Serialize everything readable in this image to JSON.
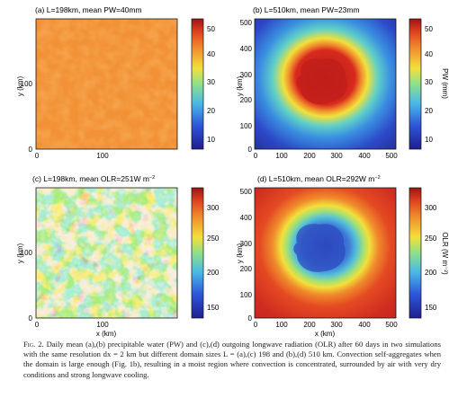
{
  "figure": {
    "panels": [
      {
        "title": "(a) L=198km,  mean PW=40mm",
        "xlabel": "",
        "ylabel": "y (km)",
        "xticks": [
          "0",
          "100"
        ],
        "yticks": [
          "0",
          "100"
        ],
        "colorbar": {
          "ticks": [
            "10",
            "20",
            "30",
            "40",
            "50"
          ],
          "label": ""
        }
      },
      {
        "title": "(b) L=510km,  mean PW=23mm",
        "xlabel": "",
        "ylabel": "y (km)",
        "xticks": [
          "0",
          "100",
          "200",
          "300",
          "400",
          "500"
        ],
        "yticks": [
          "0",
          "100",
          "200",
          "300",
          "400",
          "500"
        ],
        "colorbar": {
          "ticks": [
            "10",
            "20",
            "30",
            "40",
            "50"
          ],
          "label": "PW (mm)"
        }
      },
      {
        "title_main": "(c) L=198km,  mean OLR=251W m",
        "title_sup": "−2",
        "xlabel": "x (km)",
        "ylabel": "y (km)",
        "xticks": [
          "0",
          "100"
        ],
        "yticks": [
          "0",
          "100"
        ],
        "colorbar": {
          "ticks": [
            "150",
            "200",
            "250",
            "300"
          ],
          "label": ""
        }
      },
      {
        "title_main": "(d) L=510km,  mean OLR=292W m",
        "title_sup": "−2",
        "xlabel": "x (km)",
        "ylabel": "y (km)",
        "xticks": [
          "0",
          "100",
          "200",
          "300",
          "400",
          "500"
        ],
        "yticks": [
          "0",
          "100",
          "200",
          "300",
          "400",
          "500"
        ],
        "colorbar": {
          "ticks": [
            "150",
            "200",
            "250",
            "300"
          ],
          "label": "OLR (W m⁻²)"
        }
      }
    ],
    "colors": {
      "low": "#1f1f8f",
      "mid": "#5fd0c8",
      "high": "#f2e03a",
      "orange": "#f08a2c",
      "max": "#b81f1f"
    }
  },
  "caption": {
    "label": "Fig. 2.",
    "text": "Daily mean (a),(b) precipitable water (PW) and (c),(d) outgoing longwave radiation (OLR) after 60 days in two simulations with the same resolution dx = 2 km but different domain sizes L = (a),(c) 198 and (b),(d) 510 km. Convection self-aggregates when the domain is large enough (Fig. 1b), resulting in a moist region where convection is concentrated, surrounded by air with very dry conditions and strong longwave cooling."
  }
}
